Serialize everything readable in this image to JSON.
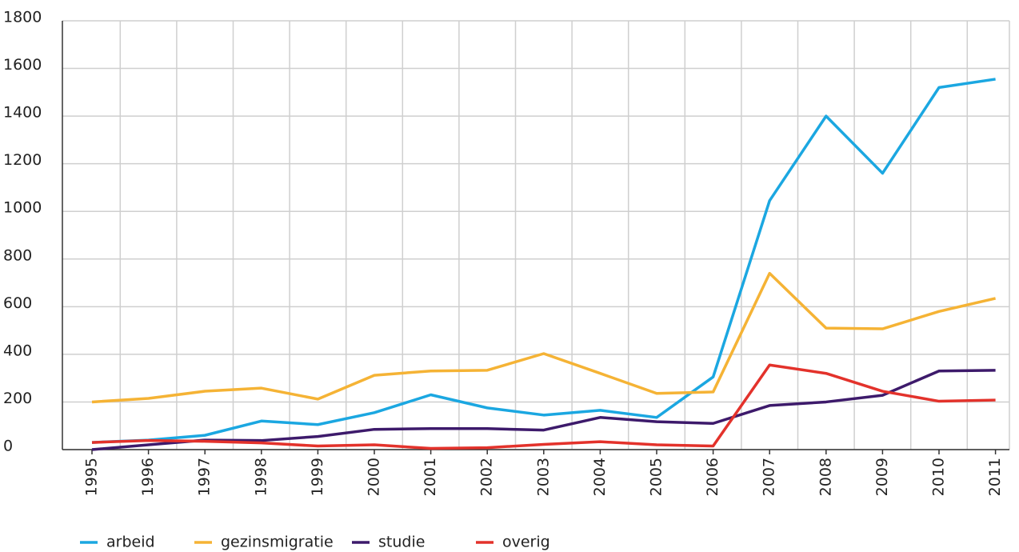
{
  "chart_data": {
    "type": "line",
    "categories": [
      "1995",
      "1996",
      "1997",
      "1998",
      "1999",
      "2000",
      "2001",
      "2002",
      "2003",
      "2004",
      "2005",
      "2006",
      "2007",
      "2008",
      "2009",
      "2010",
      "2011"
    ],
    "series": [
      {
        "name": "arbeid",
        "color": "#1ba7e1",
        "values": [
          30,
          40,
          60,
          120,
          105,
          155,
          230,
          175,
          145,
          165,
          135,
          305,
          1045,
          1400,
          1160,
          1520,
          1555
        ]
      },
      {
        "name": "gezinsmigratie",
        "color": "#f5b335",
        "values": [
          200,
          215,
          245,
          258,
          212,
          312,
          330,
          333,
          403,
          320,
          236,
          242,
          740,
          510,
          507,
          580,
          635
        ]
      },
      {
        "name": "studie",
        "color": "#3d1a6b",
        "values": [
          0,
          20,
          40,
          38,
          55,
          85,
          88,
          88,
          82,
          135,
          117,
          110,
          185,
          200,
          228,
          330,
          333
        ]
      },
      {
        "name": "overig",
        "color": "#e3322b",
        "values": [
          30,
          38,
          35,
          28,
          15,
          20,
          5,
          8,
          22,
          33,
          20,
          15,
          355,
          320,
          245,
          203,
          208
        ]
      }
    ],
    "ylim": [
      0,
      1800
    ],
    "yticks": [
      0,
      200,
      400,
      600,
      800,
      1000,
      1200,
      1400,
      1600,
      1800
    ],
    "grid": true,
    "legend": "bottom"
  }
}
